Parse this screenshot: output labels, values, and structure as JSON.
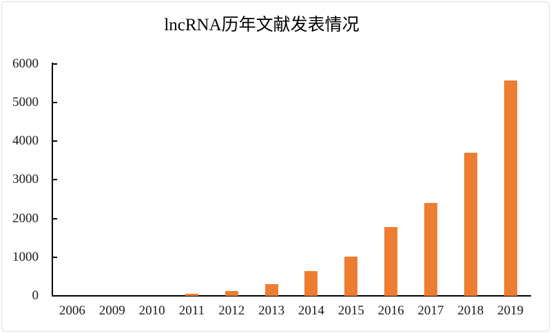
{
  "chart_data": {
    "type": "bar",
    "title": "lncRNA历年文献发表情况",
    "categories": [
      "2006",
      "2009",
      "2010",
      "2011",
      "2012",
      "2013",
      "2014",
      "2015",
      "2016",
      "2017",
      "2018",
      "2019"
    ],
    "values": [
      0,
      0,
      0,
      50,
      120,
      300,
      640,
      1020,
      1770,
      2400,
      3690,
      5570
    ],
    "xlabel": "",
    "ylabel": "",
    "ylim": [
      0,
      6000
    ],
    "yticks": [
      0,
      1000,
      2000,
      3000,
      4000,
      5000,
      6000
    ],
    "grid": false,
    "legend_position": "none",
    "bar_color": "#ED7D31",
    "axis_color": "#000000",
    "background_color": "#FFFFFF",
    "border_color": "#DCDCDC"
  }
}
